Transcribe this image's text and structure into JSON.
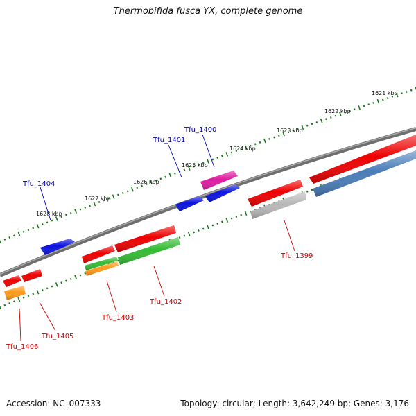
{
  "title": "Thermobifida fusca YX, complete genome",
  "footer": {
    "accession": "Accession: NC_007333",
    "summary": "Topology: circular; Length: 3,642,249 bp; Genes: 3,176"
  },
  "scale_labels": [
    {
      "text": "1621 kbp"
    },
    {
      "text": "1622 kbp"
    },
    {
      "text": "1623 kbp"
    },
    {
      "text": "1624 kbp"
    },
    {
      "text": "1625 kbp"
    },
    {
      "text": "1626 kbp"
    },
    {
      "text": "1627 kbp"
    },
    {
      "text": "1628 kbp"
    }
  ],
  "gene_labels": [
    {
      "text": "Tfu_1400",
      "strand": "forward"
    },
    {
      "text": "Tfu_1401",
      "strand": "forward"
    },
    {
      "text": "Tfu_1404",
      "strand": "forward"
    },
    {
      "text": "Tfu_1399",
      "strand": "reverse"
    },
    {
      "text": "Tfu_1402",
      "strand": "reverse"
    },
    {
      "text": "Tfu_1403",
      "strand": "reverse"
    },
    {
      "text": "Tfu_1405",
      "strand": "reverse"
    },
    {
      "text": "Tfu_1406",
      "strand": "reverse"
    }
  ],
  "colors": {
    "forward_label": "#0000bb",
    "reverse_label": "#cc0000",
    "backbone": "#7a7a7a",
    "ticks": "#1a7a1a",
    "cds": "#ee0000",
    "gene_blue": "#0a12e0",
    "gene_magenta": "#e01aa0",
    "gene_green": "#33bb33",
    "gene_orange": "#ff9a1a",
    "gene_gray": "#b8b8b8",
    "gene_steel": "#4a7db8"
  }
}
